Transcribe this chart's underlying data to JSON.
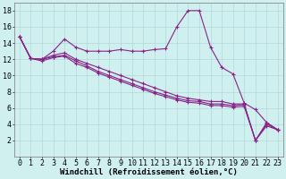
{
  "xlabel": "Windchill (Refroidissement éolien,°C)",
  "x_values": [
    0,
    1,
    2,
    3,
    4,
    5,
    6,
    7,
    8,
    9,
    10,
    11,
    12,
    13,
    14,
    15,
    16,
    17,
    18,
    19,
    20,
    21,
    22,
    23
  ],
  "line1": [
    14.8,
    12.1,
    12.0,
    13.0,
    14.5,
    13.5,
    13.0,
    13.0,
    13.0,
    13.2,
    13.0,
    13.0,
    13.2,
    13.3,
    16.0,
    18.0,
    18.0,
    13.5,
    11.0,
    10.2,
    6.6,
    5.8,
    4.2,
    3.3
  ],
  "line2": [
    14.8,
    12.1,
    12.0,
    12.5,
    12.8,
    12.0,
    11.5,
    11.0,
    10.5,
    10.0,
    9.5,
    9.0,
    8.5,
    8.0,
    7.5,
    7.2,
    7.0,
    6.8,
    6.8,
    6.5,
    6.5,
    2.0,
    4.2,
    3.3
  ],
  "line3": [
    14.8,
    12.1,
    12.0,
    12.3,
    12.5,
    11.8,
    11.2,
    10.5,
    10.0,
    9.5,
    9.0,
    8.5,
    8.0,
    7.6,
    7.2,
    6.9,
    6.8,
    6.5,
    6.5,
    6.3,
    6.4,
    2.0,
    4.0,
    3.3
  ],
  "line4": [
    14.8,
    12.1,
    11.8,
    12.2,
    12.4,
    11.5,
    11.0,
    10.3,
    9.8,
    9.3,
    8.8,
    8.3,
    7.8,
    7.4,
    7.0,
    6.7,
    6.6,
    6.3,
    6.3,
    6.1,
    6.2,
    2.0,
    3.8,
    3.3
  ],
  "line_color": "#882288",
  "bg_color": "#d0f0f0",
  "grid_color": "#b0d8d8",
  "ylim": [
    0,
    19
  ],
  "yticks": [
    2,
    4,
    6,
    8,
    10,
    12,
    14,
    16,
    18
  ],
  "xtick_labels": [
    "0",
    "1",
    "2",
    "3",
    "4",
    "5",
    "6",
    "7",
    "8",
    "9",
    "10",
    "11",
    "12",
    "13",
    "14",
    "15",
    "16",
    "17",
    "18",
    "19",
    "20",
    "21",
    "22",
    "23"
  ],
  "marker": "+",
  "markersize": 3,
  "linewidth": 0.8,
  "xlabel_fontsize": 6.5,
  "tick_fontsize": 6
}
